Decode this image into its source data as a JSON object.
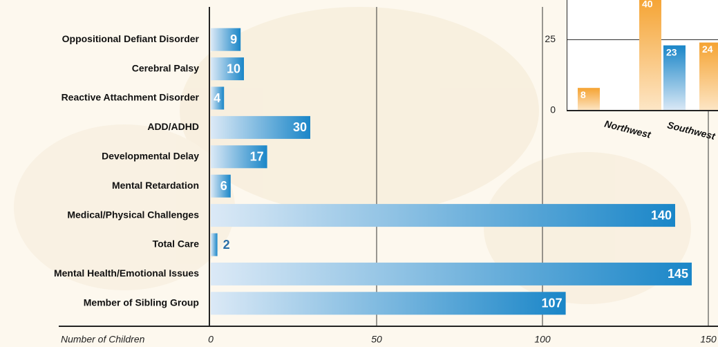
{
  "chart_data": [
    {
      "type": "hbar",
      "categories": [
        "Oppositional Defiant Disorder",
        "Cerebral Palsy",
        "Reactive Attachment Disorder",
        "ADD/ADHD",
        "Developmental Delay",
        "Mental Retardation",
        "Medical/Physical Challenges",
        "Total Care",
        "Mental Health/Emotional Issues",
        "Member of Sibling Group"
      ],
      "values": [
        9,
        10,
        4,
        30,
        17,
        6,
        140,
        2,
        145,
        107
      ],
      "color": "#1a86c8",
      "xlabel": "Number of Children",
      "xlim": [
        0,
        150
      ],
      "xticks": [
        0,
        50,
        100,
        150
      ],
      "grid": true
    },
    {
      "type": "vbar",
      "group_labels": [
        "Northwest",
        "Southwest"
      ],
      "values": [
        8,
        40,
        23,
        24
      ],
      "colors": [
        "#f5a332",
        "#f5a332",
        "#1a86c8",
        "#f5a332"
      ],
      "ylim": [
        0,
        39
      ],
      "yticks": [
        0,
        25
      ]
    }
  ]
}
